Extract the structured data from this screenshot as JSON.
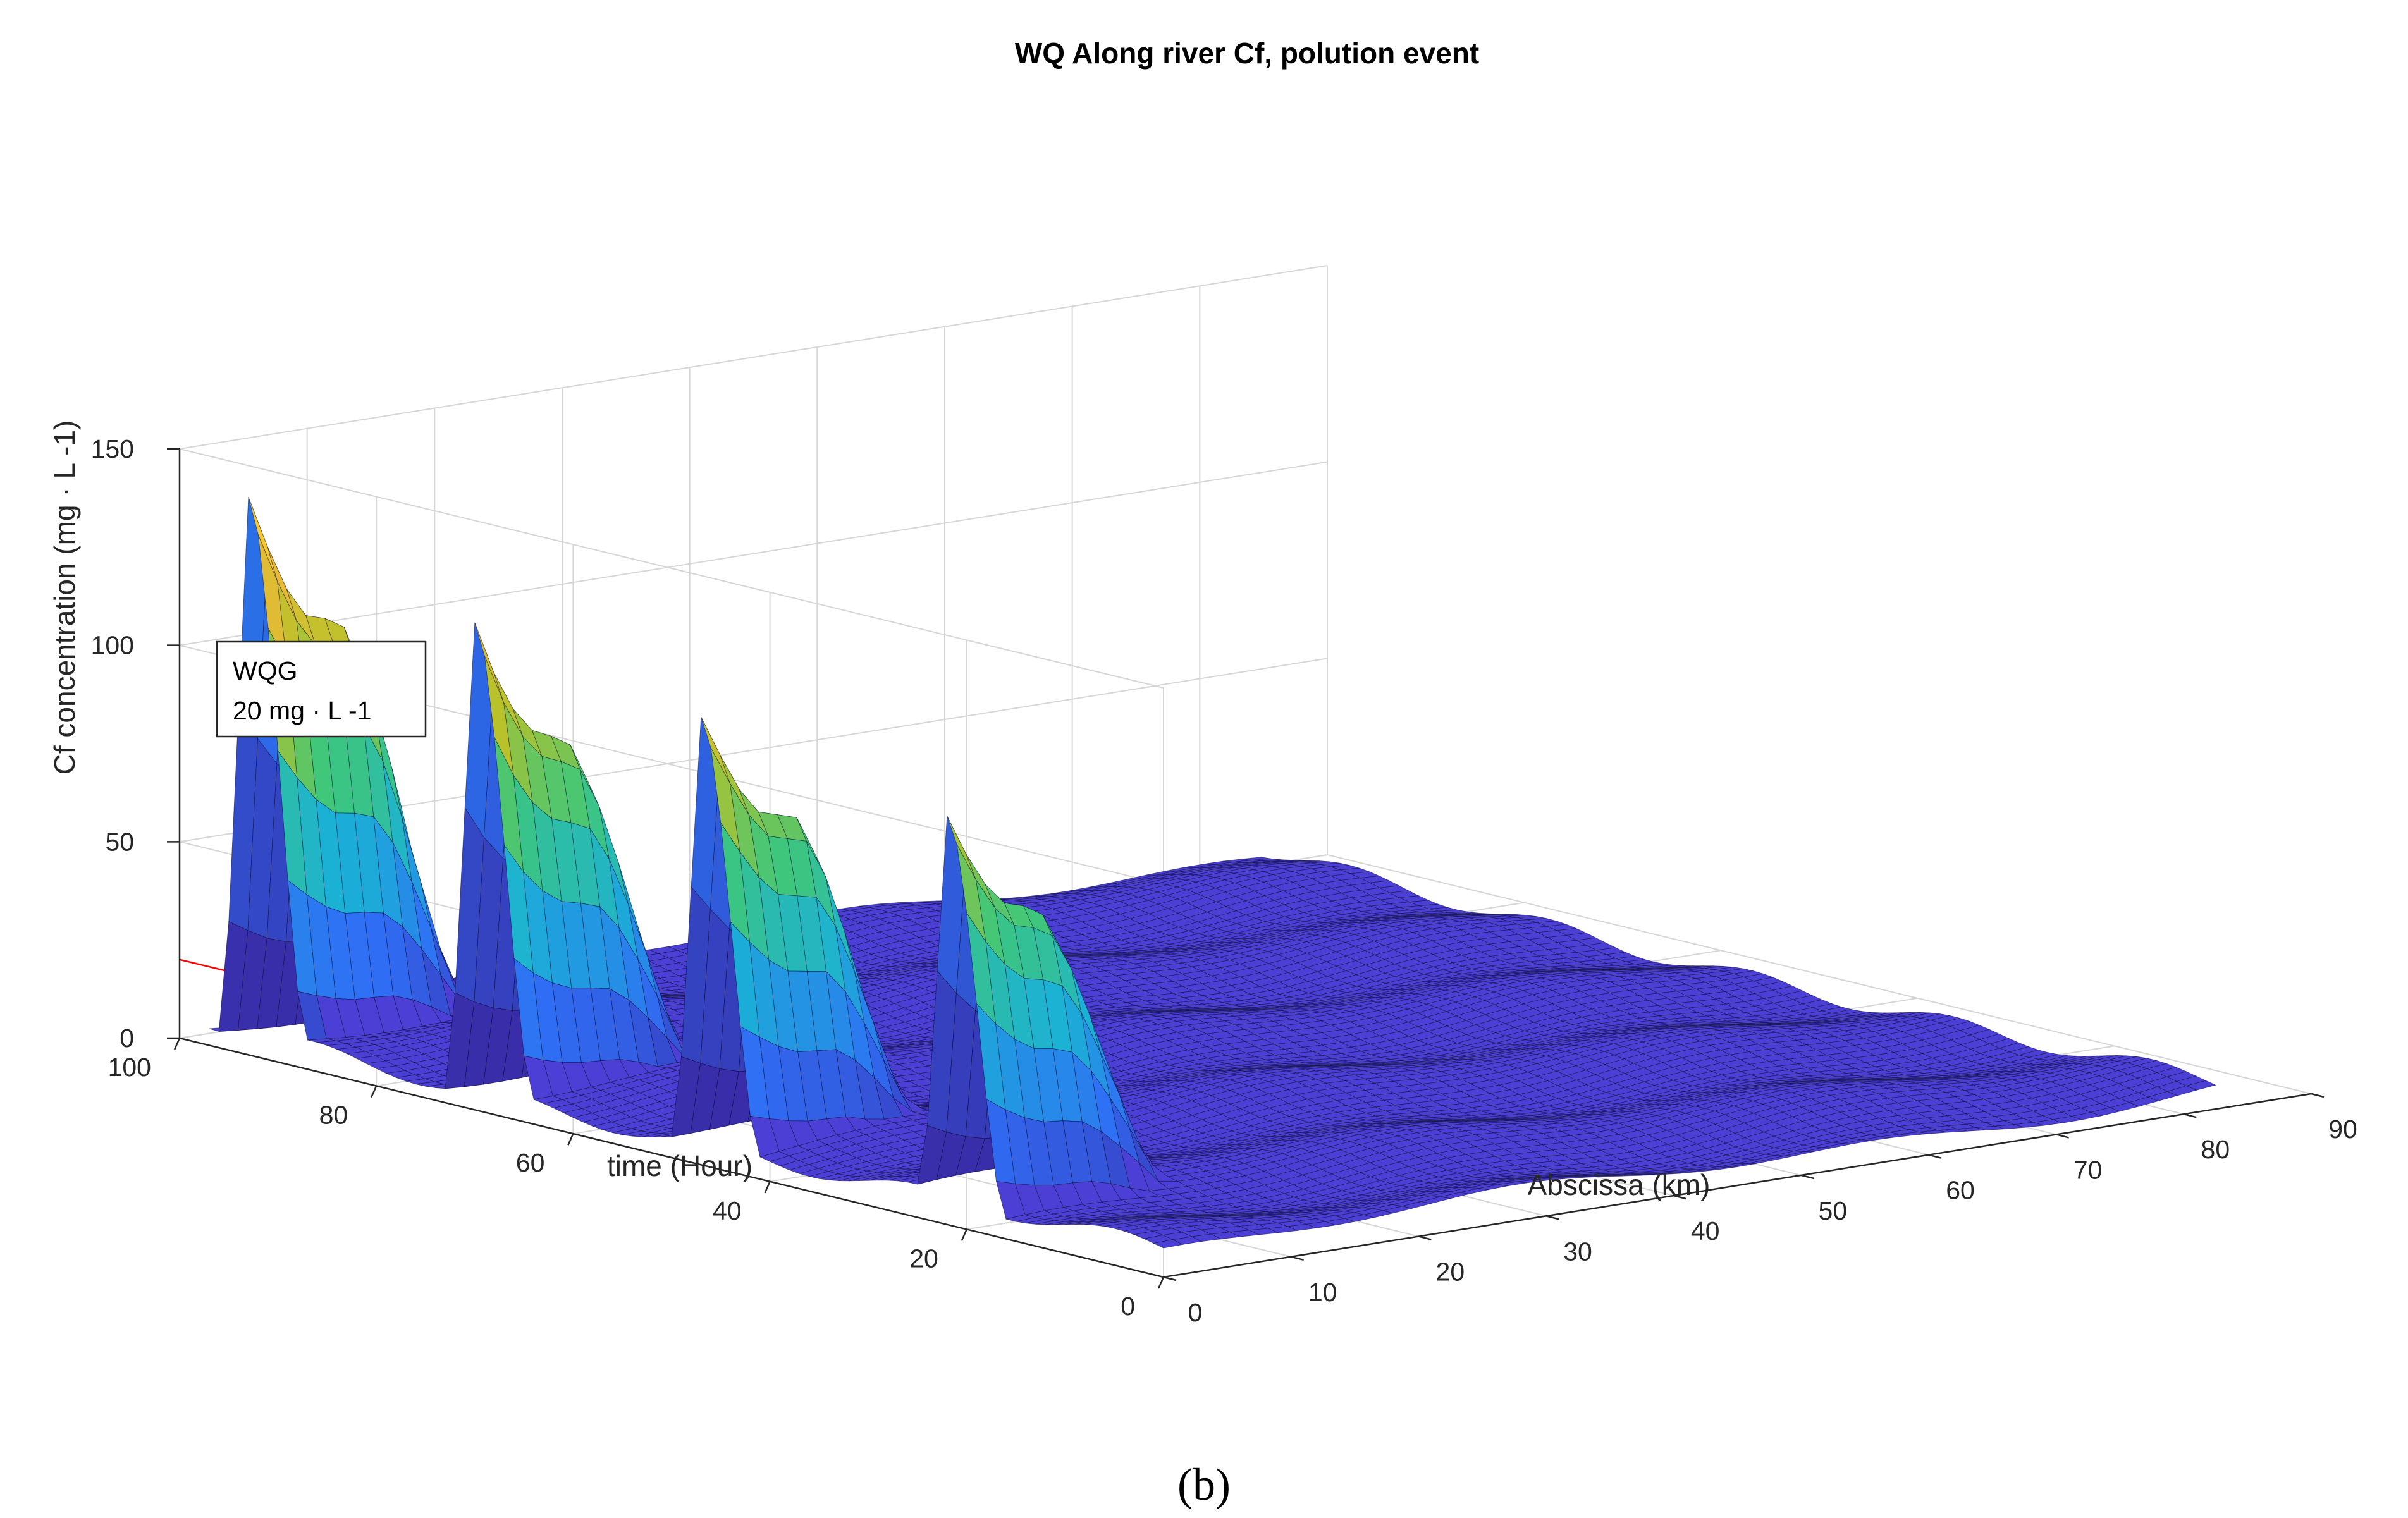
{
  "chart_data": {
    "type": "surface",
    "title": "WQ Along river Cf, polution event",
    "xlabel": "Abscissa (km)",
    "ylabel": "time (Hour)",
    "zlabel": "Cf concentration (mg · L -1)",
    "xlim": [
      0,
      90
    ],
    "ylim": [
      0,
      100
    ],
    "zlim": [
      0,
      150
    ],
    "x_ticks": [
      "0",
      "10",
      "20",
      "30",
      "40",
      "50",
      "60",
      "70",
      "80",
      "90"
    ],
    "y_ticks": [
      "0",
      "20",
      "40",
      "60",
      "80",
      "100"
    ],
    "z_ticks": [
      "0",
      "50",
      "100",
      "150"
    ],
    "grid": true,
    "colormap": [
      "#3e26a8",
      "#2f6ff5",
      "#1bb1d6",
      "#3fc77a",
      "#b8c22a",
      "#f6b93a",
      "#f9fb15"
    ],
    "surface_color_base": "#4b3fd6",
    "surface_edge_color": "#0a0a2a",
    "peaks": [
      {
        "time": 93,
        "abscissa_start": 0,
        "abscissa_end": 16,
        "crest": [
          142,
          124,
          110,
          108,
          104,
          80,
          50,
          20,
          4
        ]
      },
      {
        "time": 70,
        "abscissa_start": 0,
        "abscissa_end": 16,
        "crest": [
          124,
          106,
          95,
          92,
          88,
          68,
          44,
          18,
          4
        ]
      },
      {
        "time": 47,
        "abscissa_start": 0,
        "abscissa_end": 16,
        "crest": [
          114,
          100,
          88,
          86,
          84,
          64,
          40,
          16,
          3
        ]
      },
      {
        "time": 22,
        "abscissa_start": 0,
        "abscissa_end": 16,
        "crest": [
          104,
          90,
          80,
          78,
          74,
          56,
          36,
          14,
          3
        ]
      }
    ],
    "background_level": 6,
    "guideline": {
      "label": "WQG",
      "value_text": "20 mg · L -1",
      "value": 20,
      "color": "#ff0000"
    }
  },
  "panel_label": "(b)"
}
